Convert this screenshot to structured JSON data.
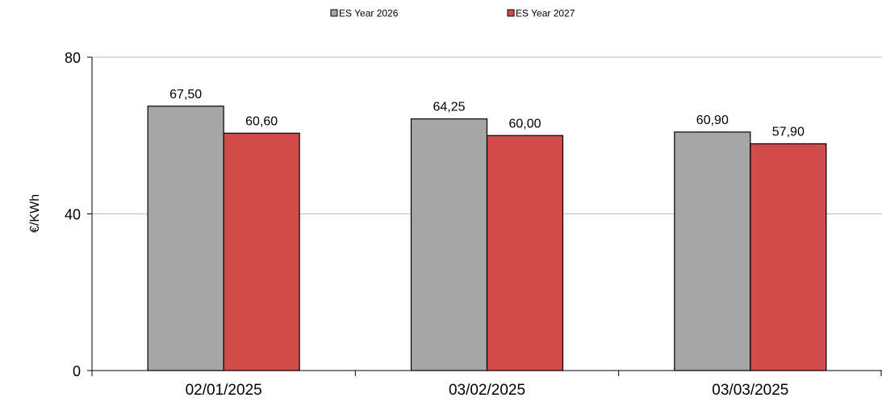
{
  "chart_data": {
    "type": "bar",
    "categories": [
      "02/01/2025",
      "03/02/2025",
      "03/03/2025"
    ],
    "series": [
      {
        "name": "ES Year 2026",
        "values": [
          67.5,
          64.25,
          60.9
        ],
        "labels": [
          "67,50",
          "64,25",
          "60,90"
        ],
        "color": "#a6a6a6"
      },
      {
        "name": "ES Year 2027",
        "values": [
          60.6,
          60.0,
          57.9
        ],
        "labels": [
          "60,60",
          "60,00",
          "57,90"
        ],
        "color": "#d14b4b"
      }
    ],
    "ylabel": "€/KWh",
    "ylim": [
      0,
      80
    ],
    "yticks": [
      0,
      40,
      80
    ],
    "grid": true,
    "legend": "top-center"
  }
}
